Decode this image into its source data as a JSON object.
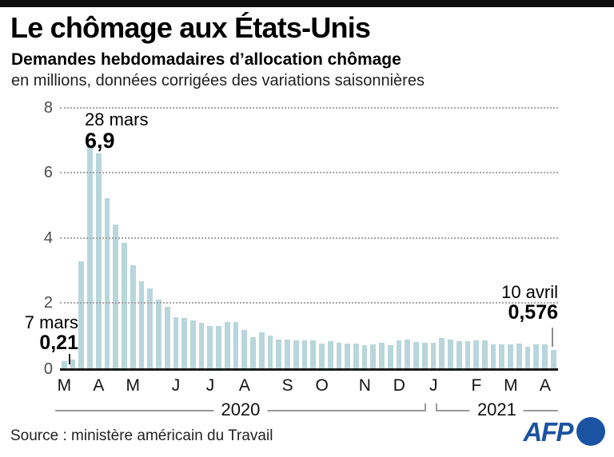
{
  "header": {
    "title": "Le chômage aux États-Unis",
    "subtitle": "Demandes hebdomadaires d’allocation chômage",
    "unit_note": "en millions, données corrigées des variations saisonnières"
  },
  "chart_data": {
    "type": "bar",
    "title": "Demandes hebdomadaires d’allocation chômage",
    "ylabel": "en millions, données corrigées des variations saisonnières",
    "ylim": [
      0,
      8
    ],
    "yticks": [
      0,
      2,
      4,
      6,
      8
    ],
    "grid": "horizontal-dotted",
    "bar_color": "#b8d6dc",
    "x_description": "semaines du 7 mars 2020 au 10 avril 2021",
    "values": [
      0.21,
      0.28,
      3.31,
      6.9,
      6.62,
      5.24,
      4.44,
      3.87,
      3.18,
      2.69,
      2.45,
      2.12,
      1.9,
      1.57,
      1.54,
      1.48,
      1.41,
      1.31,
      1.31,
      1.42,
      1.44,
      1.19,
      0.97,
      1.1,
      1.01,
      0.88,
      0.89,
      0.87,
      0.87,
      0.85,
      0.77,
      0.84,
      0.8,
      0.76,
      0.76,
      0.71,
      0.75,
      0.79,
      0.72,
      0.86,
      0.89,
      0.81,
      0.78,
      0.78,
      0.93,
      0.89,
      0.84,
      0.84,
      0.86,
      0.86,
      0.75,
      0.75,
      0.73,
      0.77,
      0.66,
      0.73,
      0.74,
      0.576
    ],
    "month_ticks": [
      {
        "label": "M",
        "start": 0,
        "count": 4
      },
      {
        "label": "A",
        "start": 4,
        "count": 4
      },
      {
        "label": "M",
        "start": 8,
        "count": 5
      },
      {
        "label": "J",
        "start": 13,
        "count": 4
      },
      {
        "label": "J",
        "start": 17,
        "count": 4
      },
      {
        "label": "A",
        "start": 21,
        "count": 5
      },
      {
        "label": "S",
        "start": 26,
        "count": 4
      },
      {
        "label": "O",
        "start": 30,
        "count": 5
      },
      {
        "label": "N",
        "start": 35,
        "count": 4
      },
      {
        "label": "D",
        "start": 39,
        "count": 4
      },
      {
        "label": "J",
        "start": 43,
        "count": 5
      },
      {
        "label": "F",
        "start": 48,
        "count": 4
      },
      {
        "label": "M",
        "start": 52,
        "count": 4
      },
      {
        "label": "A",
        "start": 56,
        "count": 2
      }
    ],
    "year_spans": [
      {
        "label": "2020",
        "start": 0,
        "count": 43
      },
      {
        "label": "2021",
        "start": 43,
        "count": 15
      }
    ],
    "annotations": [
      {
        "id": "first",
        "date_label": "7 mars",
        "value_label": "0,21",
        "value": 0.21,
        "week_index": 0
      },
      {
        "id": "peak",
        "date_label": "28 mars",
        "value_label": "6,9",
        "value": 6.9,
        "week_index": 3
      },
      {
        "id": "last",
        "date_label": "10 avril",
        "value_label": "0,576",
        "value": 0.576,
        "week_index": 57
      }
    ]
  },
  "footer": {
    "source": "Source : ministère américain du Travail",
    "logo_text": "AFP",
    "logo_color": "#1a53a1"
  }
}
